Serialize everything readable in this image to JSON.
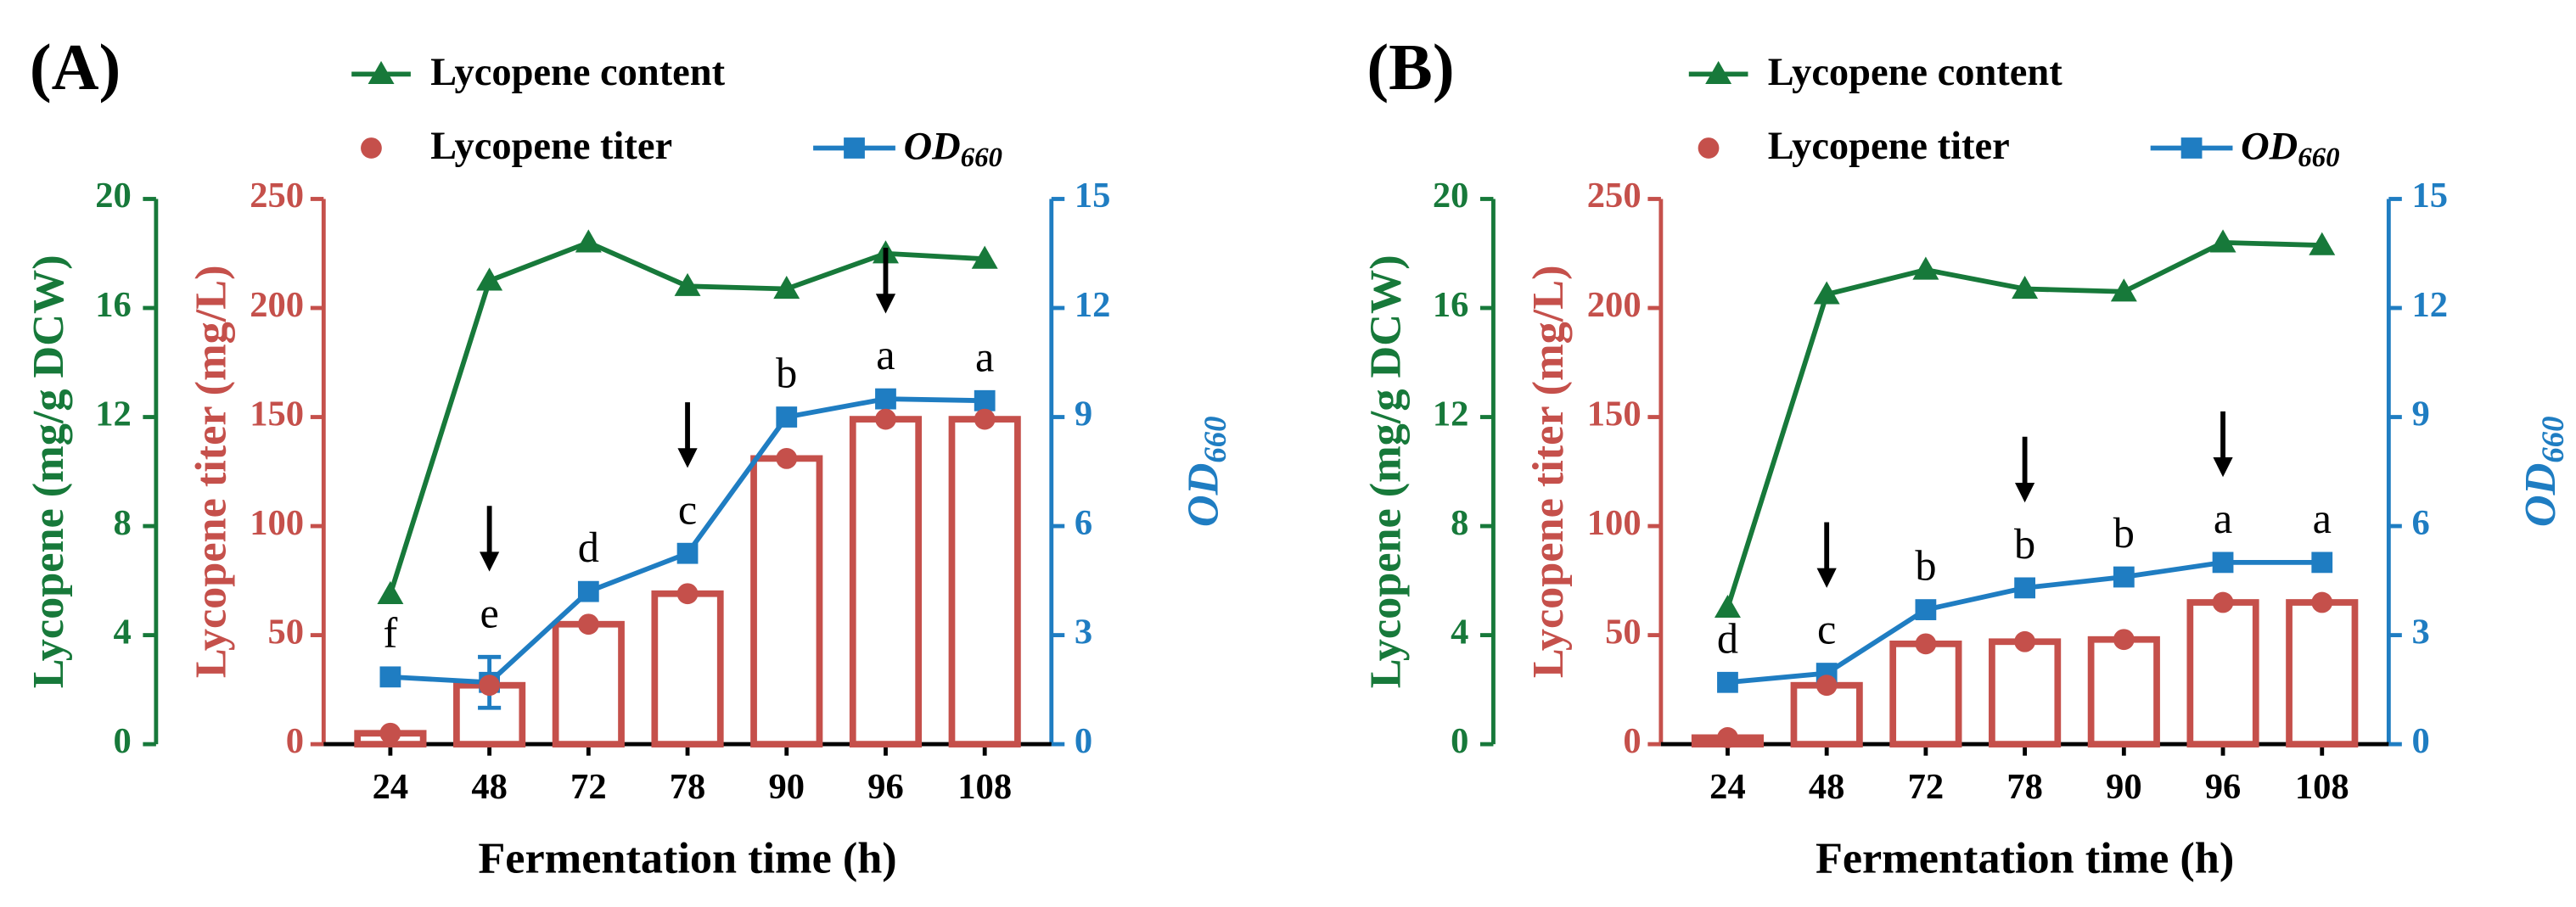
{
  "chart_data": [
    {
      "type": "bar",
      "title": "(A)",
      "x_label": "Fermentation time (h)",
      "categories": [
        "24",
        "48",
        "72",
        "78",
        "90",
        "96",
        "108"
      ],
      "y_label": "Lycopene titer (mg/L)",
      "ylim": [
        0,
        250
      ],
      "yticks": [
        0,
        50,
        100,
        150,
        200,
        250
      ],
      "y2_label": "OD",
      "y2_label_sub": "660",
      "y2lim": [
        0,
        15
      ],
      "y2ticks": [
        0,
        3,
        6,
        9,
        12,
        15
      ],
      "y3_label": "Lycopene (mg/g DCW)",
      "y3lim": [
        0,
        20
      ],
      "y3ticks": [
        0,
        4,
        8,
        12,
        16,
        20
      ],
      "series": [
        {
          "name": "Lycopene content",
          "type": "line",
          "marker": "triangle",
          "axis": "y3",
          "color": "#17793a",
          "values": [
            5.5,
            17.0,
            18.4,
            16.8,
            16.7,
            18.0,
            17.8
          ]
        },
        {
          "name": "Lycopene titer",
          "type": "bar",
          "color": "#c5504b",
          "values": [
            5,
            27,
            55,
            69,
            131,
            149,
            149
          ]
        },
        {
          "name": "OD",
          "name_sub": "660",
          "type": "line",
          "marker": "square",
          "axis": "y2",
          "color": "#1f7dc2",
          "values": [
            1.85,
            1.7,
            4.2,
            5.25,
            9.0,
            9.5,
            9.45
          ],
          "errors": [
            null,
            0.7,
            null,
            null,
            null,
            null,
            null
          ]
        }
      ],
      "letters": [
        "f",
        "e",
        "d",
        "c",
        "b",
        "a",
        "a"
      ],
      "arrows_at": [
        "48",
        "78",
        "96"
      ]
    },
    {
      "type": "bar",
      "title": "(B)",
      "x_label": "Fermentation time (h)",
      "categories": [
        "24",
        "48",
        "72",
        "78",
        "90",
        "96",
        "108"
      ],
      "y_label": "Lycopene titer (mg/L)",
      "ylim": [
        0,
        250
      ],
      "yticks": [
        0,
        50,
        100,
        150,
        200,
        250
      ],
      "y2_label": "OD",
      "y2_label_sub": "660",
      "y2lim": [
        0,
        15
      ],
      "y2ticks": [
        0,
        3,
        6,
        9,
        12,
        15
      ],
      "y3_label": "Lycopene (mg/g DCW)",
      "y3lim": [
        0,
        20
      ],
      "y3ticks": [
        0,
        4,
        8,
        12,
        16,
        20
      ],
      "series": [
        {
          "name": "Lycopene content",
          "type": "line",
          "marker": "triangle",
          "axis": "y3",
          "color": "#17793a",
          "values": [
            5.0,
            16.5,
            17.4,
            16.7,
            16.6,
            18.4,
            18.3
          ]
        },
        {
          "name": "Lycopene titer",
          "type": "bar",
          "color": "#c5504b",
          "values": [
            3,
            27,
            46,
            47,
            48,
            65,
            65
          ]
        },
        {
          "name": "OD",
          "name_sub": "660",
          "type": "line",
          "marker": "square",
          "axis": "y2",
          "color": "#1f7dc2",
          "values": [
            1.7,
            1.95,
            3.7,
            4.3,
            4.6,
            5.0,
            5.0
          ]
        }
      ],
      "letters": [
        "d",
        "c",
        "b",
        "b",
        "b",
        "a",
        "a"
      ],
      "arrows_at": [
        "48",
        "78",
        "96"
      ]
    }
  ]
}
